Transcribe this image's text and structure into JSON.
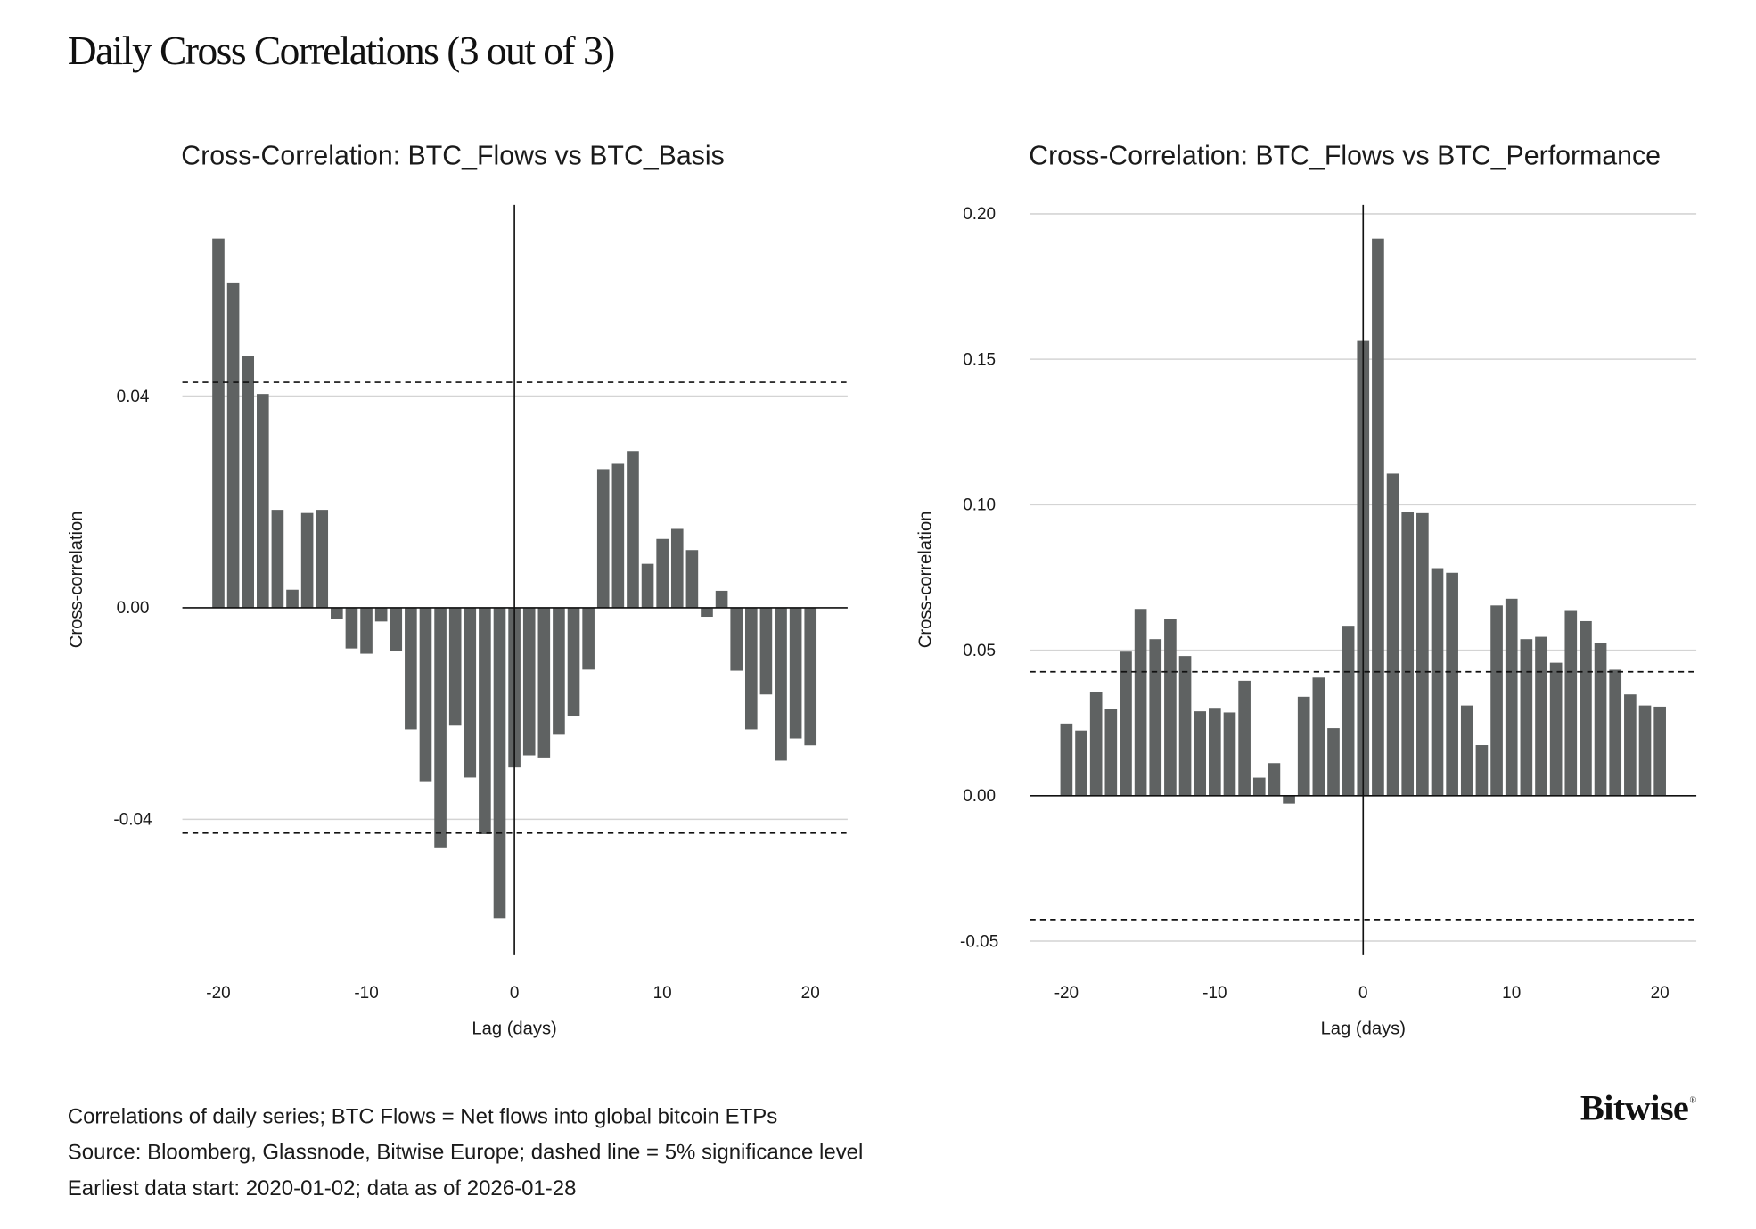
{
  "page_title": "Daily Cross Correlations (3 out of 3)",
  "footnotes": [
    "Correlations of daily series; BTC Flows = Net flows into global bitcoin ETPs",
    "Source: Bloomberg, Glassnode, Bitwise Europe; dashed line = 5% significance level",
    "Earliest data start: 2020-01-02; data as of 2026-01-28"
  ],
  "logo": "Bitwise",
  "bar_color": "#5f6262",
  "chart_data": [
    {
      "type": "bar",
      "title": "Cross-Correlation: BTC_Flows vs BTC_Basis",
      "xlabel": "Lag (days)",
      "ylabel": "Cross-correlation",
      "xticks": [
        "-20",
        "-10",
        "0",
        "10",
        "20"
      ],
      "yticks": [
        "0.04",
        "0.00",
        "-0.04"
      ],
      "ytick_values": [
        0.04,
        0.0,
        -0.04
      ],
      "significance": 0.0426,
      "grid": true,
      "x": [
        -20,
        -19,
        -18,
        -17,
        -16,
        -15,
        -14,
        -13,
        -12,
        -11,
        -10,
        -9,
        -8,
        -7,
        -6,
        -5,
        -4,
        -3,
        -2,
        -1,
        0,
        1,
        2,
        3,
        4,
        5,
        6,
        7,
        8,
        9,
        10,
        11,
        12,
        13,
        14,
        15,
        16,
        17,
        18,
        19,
        20
      ],
      "values": [
        0.0698,
        0.0615,
        0.0475,
        0.0404,
        0.0185,
        0.0034,
        0.0179,
        0.0185,
        -0.0021,
        -0.0077,
        -0.0087,
        -0.0026,
        -0.0081,
        -0.023,
        -0.0328,
        -0.0453,
        -0.0223,
        -0.0321,
        -0.0428,
        -0.0587,
        -0.0302,
        -0.0279,
        -0.0283,
        -0.024,
        -0.0204,
        -0.0117,
        0.0262,
        0.0272,
        0.0296,
        0.0083,
        0.013,
        0.0149,
        0.0109,
        -0.0017,
        0.0032,
        -0.0119,
        -0.023,
        -0.0164,
        -0.0289,
        -0.0247,
        -0.026
      ]
    },
    {
      "type": "bar",
      "title": "Cross-Correlation: BTC_Flows vs BTC_Performance",
      "xlabel": "Lag (days)",
      "ylabel": "Cross-correlation",
      "xticks": [
        "-20",
        "-10",
        "0",
        "10",
        "20"
      ],
      "yticks": [
        "0.20",
        "0.15",
        "0.10",
        "0.05",
        "0.00",
        "-0.05"
      ],
      "ytick_values": [
        0.2,
        0.15,
        0.1,
        0.05,
        0.0,
        -0.05
      ],
      "significance": 0.0426,
      "grid": true,
      "x": [
        -20,
        -19,
        -18,
        -17,
        -16,
        -15,
        -14,
        -13,
        -12,
        -11,
        -10,
        -9,
        -8,
        -7,
        -6,
        -5,
        -4,
        -3,
        -2,
        -1,
        0,
        1,
        2,
        3,
        4,
        5,
        6,
        7,
        8,
        9,
        10,
        11,
        12,
        13,
        14,
        15,
        16,
        17,
        18,
        19,
        20
      ],
      "values": [
        0.0248,
        0.0224,
        0.0356,
        0.0298,
        0.0495,
        0.0642,
        0.0538,
        0.0607,
        0.048,
        0.029,
        0.0302,
        0.0286,
        0.0395,
        0.0062,
        0.0112,
        -0.0027,
        0.034,
        0.0406,
        0.0232,
        0.0584,
        0.1563,
        0.1915,
        0.1107,
        0.0975,
        0.0971,
        0.0782,
        0.0766,
        0.031,
        0.0174,
        0.0654,
        0.0677,
        0.0538,
        0.0546,
        0.0457,
        0.0635,
        0.06,
        0.0526,
        0.0433,
        0.0348,
        0.031,
        0.0306
      ]
    }
  ]
}
